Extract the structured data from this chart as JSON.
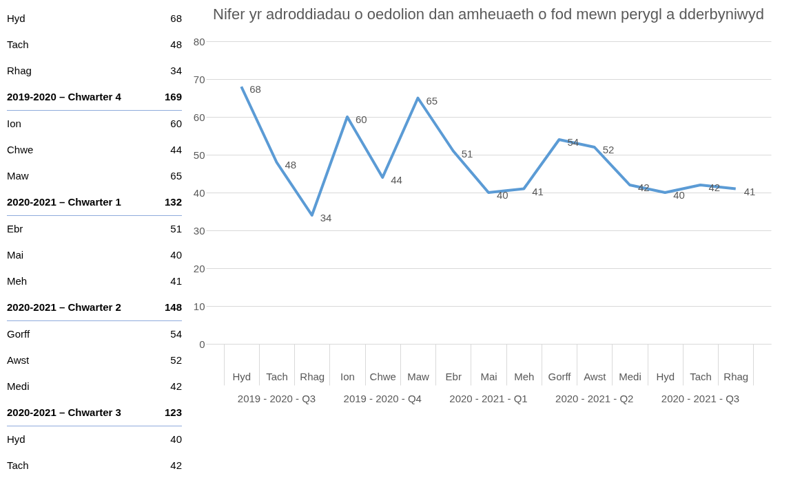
{
  "chart_data": {
    "type": "line",
    "title": "Nifer yr adroddiadau o oedolion dan amheuaeth o fod mewn perygl a dderbyniwyd",
    "categories": [
      "Hyd",
      "Tach",
      "Rhag",
      "Ion",
      "Chwe",
      "Maw",
      "Ebr",
      "Mai",
      "Meh",
      "Gorff",
      "Awst",
      "Medi",
      "Hyd",
      "Tach",
      "Rhag"
    ],
    "series": [
      {
        "color": "#5b9bd5",
        "values": [
          68,
          48,
          34,
          60,
          44,
          65,
          51,
          40,
          41,
          54,
          52,
          42,
          40,
          42,
          41
        ]
      }
    ],
    "ylim": [
      0,
      80
    ],
    "yticks": [
      0,
      10,
      20,
      30,
      40,
      50,
      60,
      70,
      80
    ],
    "grid": "y",
    "data_labels": true,
    "annotations": [
      "2019 - 2020 - Q3",
      "2019 - 2020 - Q4",
      "2020 - 2021 - Q1",
      "2020 - 2021 - Q2",
      "2020 - 2021 - Q3",
      "Hyd",
      "68",
      "Tach",
      "48",
      "Rhag",
      "34",
      "2019-2020 – Chwarter 4",
      "169",
      "Ion",
      "60",
      "Chwe",
      "44",
      "Maw",
      "65",
      "2020-2021 – Chwarter 1",
      "132",
      "Ebr",
      "51",
      "Mai",
      "40",
      "Meh",
      "41",
      "2020-2021 – Chwarter 2",
      "148",
      "Gorff",
      "54",
      "Awst",
      "52",
      "Medi",
      "42",
      "2020-2021 – Chwarter 3",
      "123",
      "Hyd",
      "40",
      "Tach",
      "42"
    ]
  }
}
